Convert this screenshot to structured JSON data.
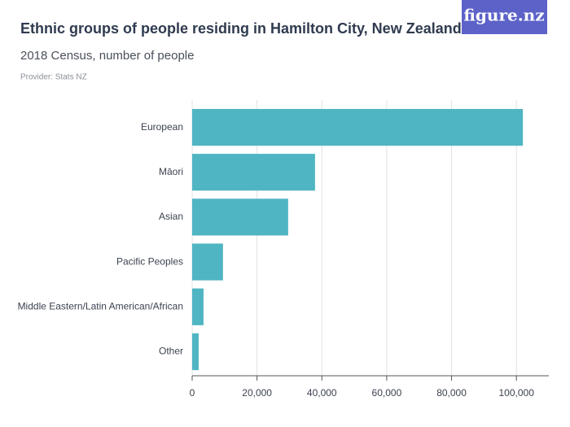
{
  "logo": "figure.nz",
  "chart_data": {
    "type": "barh",
    "title": "Ethnic groups of people residing in Hamilton City, New Zealand",
    "subtitle": "2018 Census, number of people",
    "source": "Provider: Stats NZ",
    "categories": [
      "European",
      "Māori",
      "Asian",
      "Pacific Peoples",
      "Middle Eastern/Latin American/African",
      "Other"
    ],
    "values": [
      102000,
      37900,
      29600,
      9500,
      3500,
      2000
    ],
    "color": "#4fb5c3",
    "xlim": [
      0,
      110000
    ],
    "xticks": [
      0,
      {
        "value": 20000,
        "label": "20,000"
      },
      {
        "value": 40000,
        "label": "40,000"
      },
      {
        "value": 60000,
        "label": "60,000"
      },
      {
        "value": 80000,
        "label": "80,000"
      },
      {
        "value": 100000,
        "label": "100,000"
      }
    ],
    "grid": true
  }
}
